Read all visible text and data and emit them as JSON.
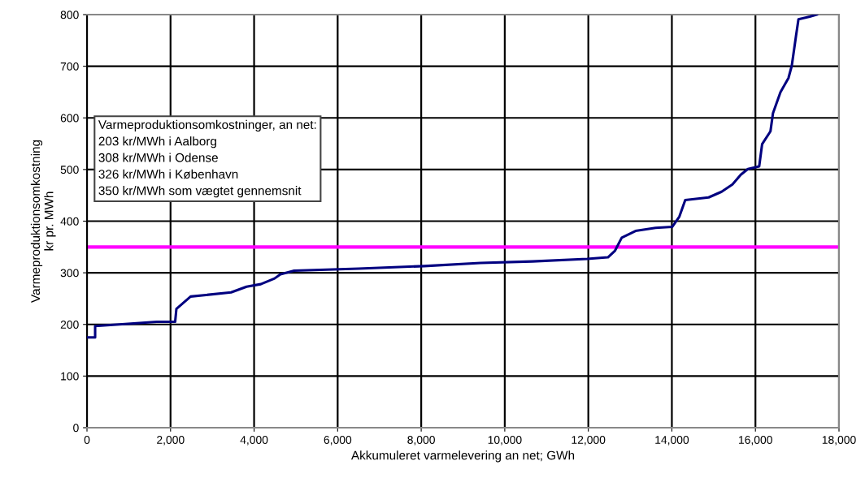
{
  "chart_data": {
    "type": "line",
    "xlabel": "Akkumuleret varmelevering an net; GWh",
    "ylabel": "Varmeproduktionsomkostning\nkr pr. MWh",
    "annotations": [
      "Varmeproduktionsomkostninger, an net:\n203 kr/MWh i Aalborg\n308 kr/MWh i Odense\n326 kr/MWh i København\n350 kr/MWh som vægtet gennemsnit"
    ],
    "series": [
      {
        "color": "#000080",
        "x": [
          30,
          195,
          195,
          770,
          1670,
          2110,
          2140,
          2480,
          3450,
          3820,
          4160,
          4490,
          4630,
          4960,
          6500,
          8070,
          9420,
          10660,
          11970,
          12470,
          12640,
          12800,
          13130,
          13610,
          14010,
          14180,
          14320,
          14880,
          15190,
          15450,
          15650,
          15820,
          16090,
          16160,
          16360,
          16420,
          16600,
          16790,
          16870,
          16970,
          17030,
          17300,
          17470
        ],
        "values": [
          175,
          175,
          197,
          200,
          205,
          205,
          230,
          254,
          262,
          273,
          278,
          289,
          297,
          304,
          308,
          313,
          319,
          322,
          327,
          330,
          343,
          368,
          381,
          387,
          389,
          409,
          441,
          446,
          457,
          471,
          490,
          501,
          506,
          549,
          574,
          609,
          650,
          677,
          701,
          758,
          791,
          796,
          800
        ]
      }
    ],
    "ref_lines": [
      {
        "axis": "y",
        "value": 350,
        "color": "#ff00ff"
      }
    ],
    "xlim": [
      0,
      18000
    ],
    "xticks": [
      0,
      {
        "value": 2000,
        "label": "2,000"
      },
      {
        "value": 4000,
        "label": "4,000"
      },
      {
        "value": 6000,
        "label": "6,000"
      },
      {
        "value": 8000,
        "label": "8,000"
      },
      {
        "value": 10000,
        "label": "10,000"
      },
      {
        "value": 12000,
        "label": "12,000"
      },
      {
        "value": 14000,
        "label": "14,000"
      },
      {
        "value": 16000,
        "label": "16,000"
      },
      {
        "value": 18000,
        "label": "18,000"
      }
    ],
    "ylim": [
      0,
      800
    ],
    "yticks": [
      0,
      100,
      200,
      300,
      400,
      500,
      600,
      700,
      800
    ],
    "grid": true,
    "legend": false,
    "marker": "none",
    "line_style": "solid"
  }
}
